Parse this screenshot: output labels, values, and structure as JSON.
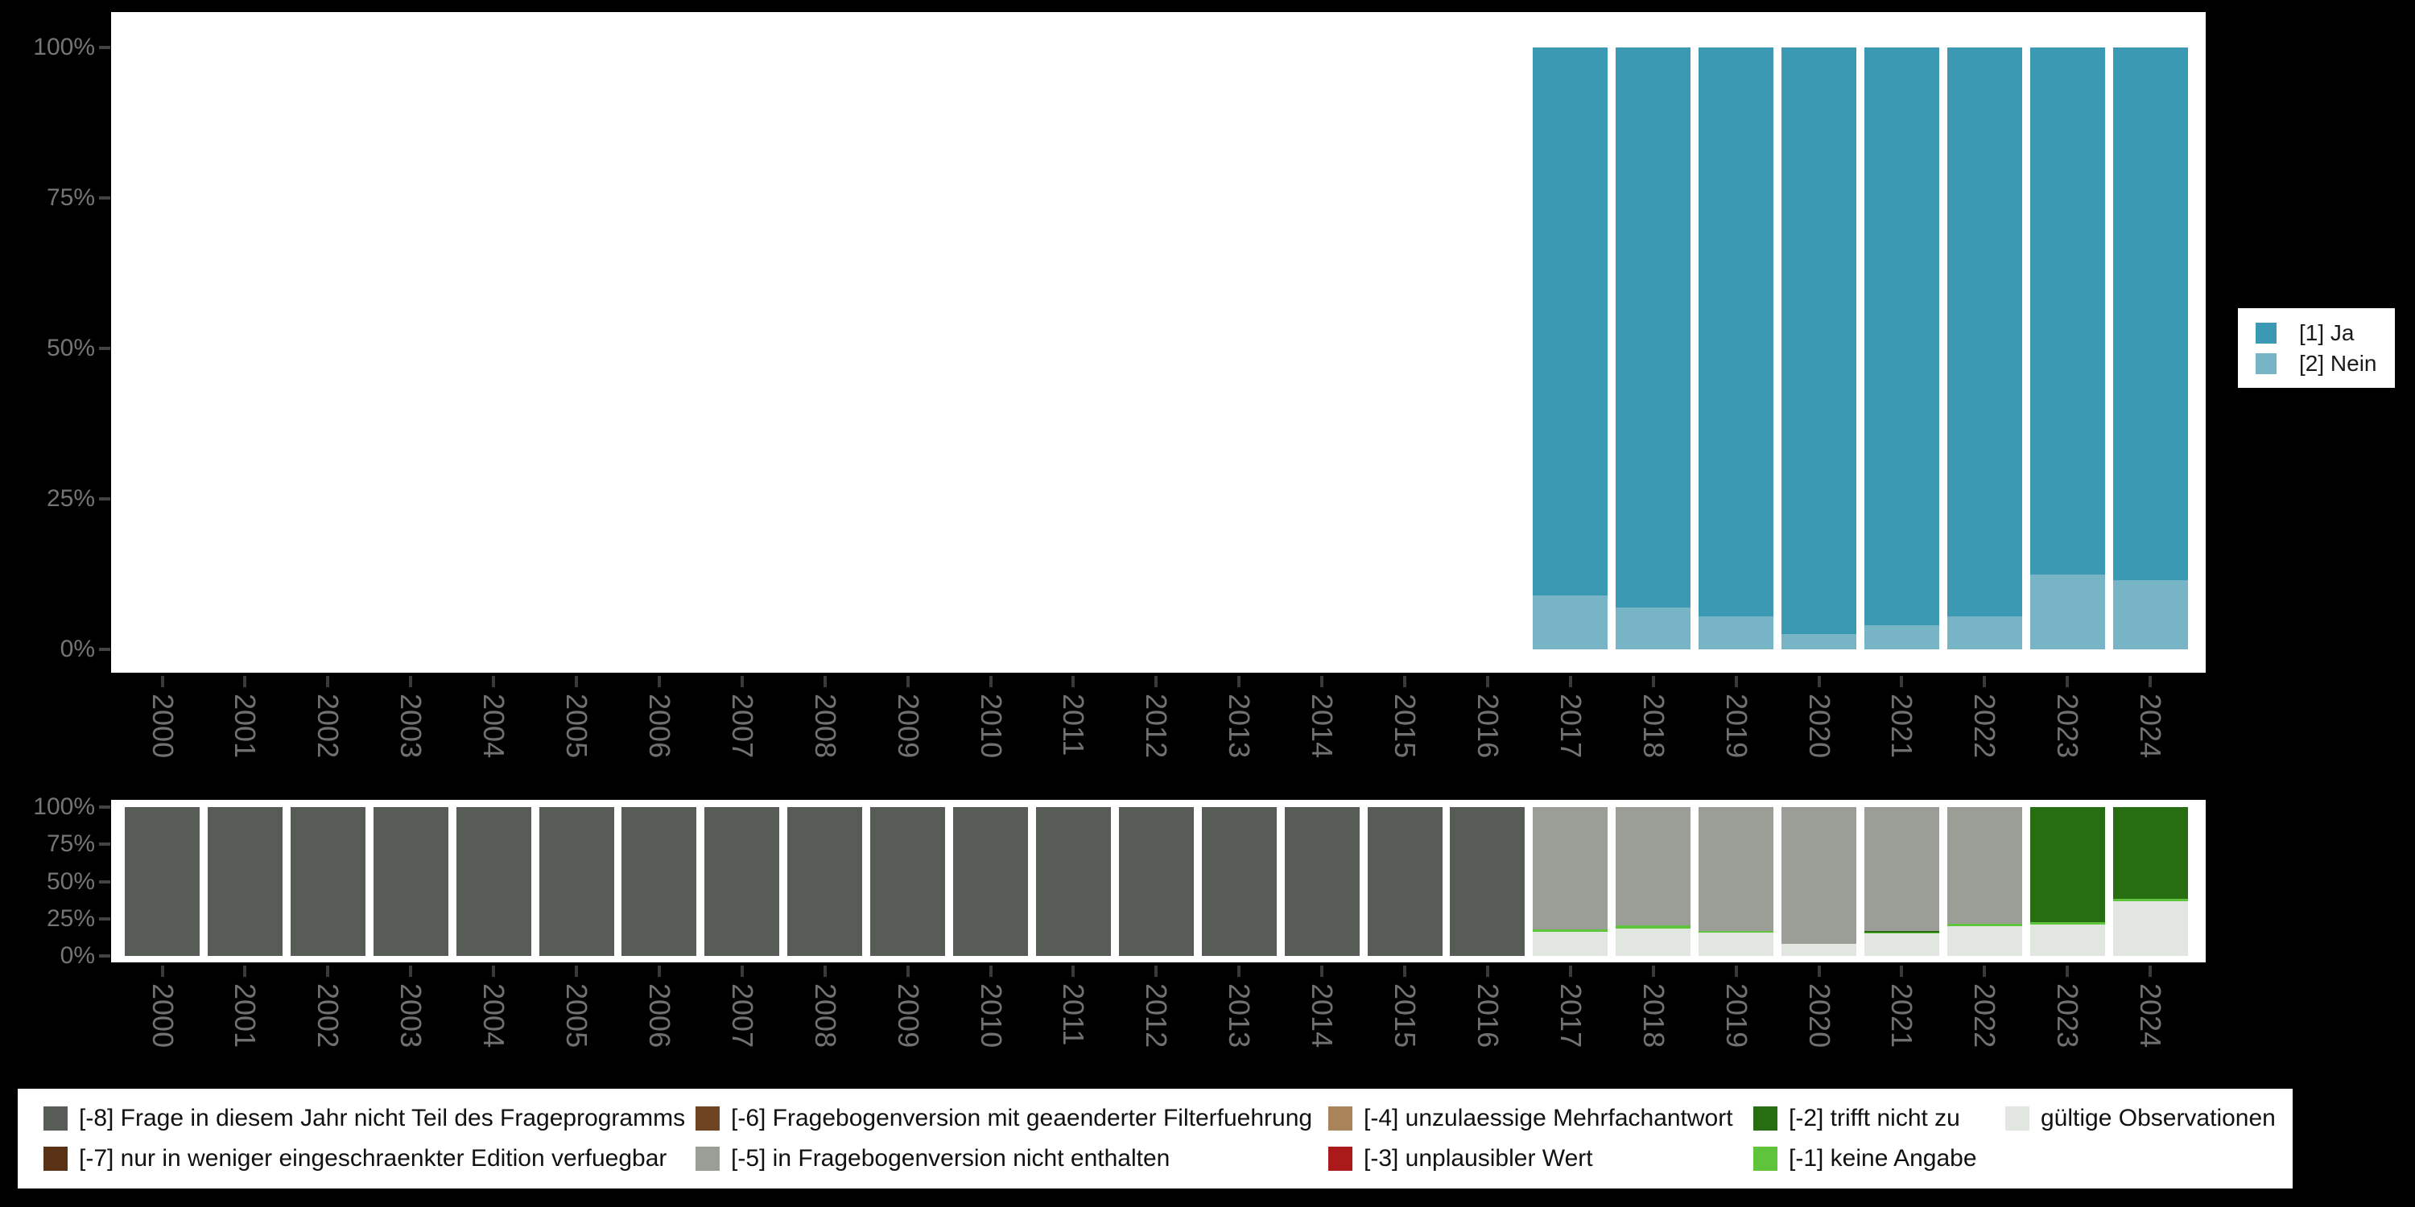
{
  "years": [
    "2000",
    "2001",
    "2002",
    "2003",
    "2004",
    "2005",
    "2006",
    "2007",
    "2008",
    "2009",
    "2010",
    "2011",
    "2012",
    "2013",
    "2014",
    "2015",
    "2016",
    "2017",
    "2018",
    "2019",
    "2020",
    "2021",
    "2022",
    "2023",
    "2024"
  ],
  "y_axis_tick_labels": [
    "100%",
    "75%",
    "50%",
    "25%",
    "0%"
  ],
  "values_legend": {
    "items": [
      {
        "label": "[1] Ja",
        "color": "#3b99b4"
      },
      {
        "label": "[2] Nein",
        "color": "#77b5c6"
      }
    ]
  },
  "missings_legend": {
    "items": [
      {
        "label": "[-8] Frage in diesem Jahr nicht Teil des Frageprogramms",
        "color": "#575d56"
      },
      {
        "label": "[-7] nur in weniger eingeschraenkter Edition verfuegbar",
        "color": "#5a3317"
      },
      {
        "label": "[-6] Fragebogenversion mit geaenderter Filterfuehrung",
        "color": "#6e4423"
      },
      {
        "label": "[-5] in Fragebogenversion nicht enthalten",
        "color": "#9a9e96"
      },
      {
        "label": "[-4] unzulaessige Mehrfachantwort",
        "color": "#a9845a"
      },
      {
        "label": "[-3] unplausibler Wert",
        "color": "#ab1a1a"
      },
      {
        "label": "[-2] trifft nicht zu",
        "color": "#266e11"
      },
      {
        "label": "[-1] keine Angabe",
        "color": "#5ec43b"
      },
      {
        "label": "gültige Observationen",
        "color": "#e2e6e0"
      }
    ]
  },
  "chart_data": [
    {
      "id": "status",
      "type": "bar",
      "stacked": true,
      "unit": "percent",
      "title": "",
      "xlabel": "",
      "ylabel": "",
      "ylim": [
        0,
        100
      ],
      "grid": false,
      "legend_position": "right",
      "categories": [
        "2000",
        "2001",
        "2002",
        "2003",
        "2004",
        "2005",
        "2006",
        "2007",
        "2008",
        "2009",
        "2010",
        "2011",
        "2012",
        "2013",
        "2014",
        "2015",
        "2016",
        "2017",
        "2018",
        "2019",
        "2020",
        "2021",
        "2022",
        "2023",
        "2024"
      ],
      "series": [
        {
          "name": "[1] Ja",
          "color": "#3b99b4",
          "values": [
            null,
            null,
            null,
            null,
            null,
            null,
            null,
            null,
            null,
            null,
            null,
            null,
            null,
            null,
            null,
            null,
            null,
            91,
            93,
            94.5,
            97.5,
            96,
            94.5,
            87.5,
            88.5
          ]
        },
        {
          "name": "[2] Nein",
          "color": "#77b5c6",
          "values": [
            null,
            null,
            null,
            null,
            null,
            null,
            null,
            null,
            null,
            null,
            null,
            null,
            null,
            null,
            null,
            null,
            null,
            9,
            7,
            5.5,
            2.5,
            4,
            5.5,
            12.5,
            11.5
          ]
        }
      ]
    },
    {
      "id": "missings",
      "type": "bar",
      "stacked": true,
      "unit": "percent",
      "title": "",
      "xlabel": "",
      "ylabel": "",
      "ylim": [
        0,
        100
      ],
      "grid": false,
      "legend_position": "bottom",
      "categories": [
        "2000",
        "2001",
        "2002",
        "2003",
        "2004",
        "2005",
        "2006",
        "2007",
        "2008",
        "2009",
        "2010",
        "2011",
        "2012",
        "2013",
        "2014",
        "2015",
        "2016",
        "2017",
        "2018",
        "2019",
        "2020",
        "2021",
        "2022",
        "2023",
        "2024"
      ],
      "series": [
        {
          "name": "[-8] Frage in diesem Jahr nicht Teil des Frageprogramms",
          "color": "#575d56",
          "values": [
            100,
            100,
            100,
            100,
            100,
            100,
            100,
            100,
            100,
            100,
            100,
            100,
            100,
            100,
            100,
            100,
            100,
            0,
            0,
            0,
            0,
            0,
            0,
            0,
            0
          ]
        },
        {
          "name": "[-7] nur in weniger eingeschraenkter Edition verfuegbar",
          "color": "#5a3317",
          "values": [
            0,
            0,
            0,
            0,
            0,
            0,
            0,
            0,
            0,
            0,
            0,
            0,
            0,
            0,
            0,
            0,
            0,
            0,
            0,
            0,
            0,
            0,
            0,
            0,
            0
          ]
        },
        {
          "name": "[-6] Fragebogenversion mit geaenderter Filterfuehrung",
          "color": "#6e4423",
          "values": [
            0,
            0,
            0,
            0,
            0,
            0,
            0,
            0,
            0,
            0,
            0,
            0,
            0,
            0,
            0,
            0,
            0,
            0,
            0,
            0,
            0,
            0,
            0,
            0,
            0
          ]
        },
        {
          "name": "[-5] in Fragebogenversion nicht enthalten",
          "color": "#9a9e96",
          "values": [
            0,
            0,
            0,
            0,
            0,
            0,
            0,
            0,
            0,
            0,
            0,
            0,
            0,
            0,
            0,
            0,
            0,
            82,
            79.5,
            83,
            92,
            83.5,
            78.5,
            0,
            0
          ]
        },
        {
          "name": "[-4] unzulaessige Mehrfachantwort",
          "color": "#a9845a",
          "values": [
            0,
            0,
            0,
            0,
            0,
            0,
            0,
            0,
            0,
            0,
            0,
            0,
            0,
            0,
            0,
            0,
            0,
            0,
            0,
            0,
            0,
            0,
            0,
            0,
            0
          ]
        },
        {
          "name": "[-3] unplausibler Wert",
          "color": "#ab1a1a",
          "values": [
            0,
            0,
            0,
            0,
            0,
            0,
            0,
            0,
            0,
            0,
            0,
            0,
            0,
            0,
            0,
            0,
            0,
            0,
            0,
            0,
            0,
            0,
            0,
            0,
            0
          ]
        },
        {
          "name": "[-2] trifft nicht zu",
          "color": "#266e11",
          "values": [
            0,
            0,
            0,
            0,
            0,
            0,
            0,
            0,
            0,
            0,
            0,
            0,
            0,
            0,
            0,
            0,
            0,
            0,
            0,
            0,
            0,
            0.7,
            0,
            77.5,
            61.5
          ]
        },
        {
          "name": "[-1] keine Angabe",
          "color": "#5ec43b",
          "values": [
            0,
            0,
            0,
            0,
            0,
            0,
            0,
            0,
            0,
            0,
            0,
            0,
            0,
            0,
            0,
            0,
            0,
            2,
            2,
            1.5,
            0,
            0.8,
            1.5,
            1.5,
            1.5
          ]
        },
        {
          "name": "gültige Observationen",
          "color": "#e2e6e0",
          "values": [
            0,
            0,
            0,
            0,
            0,
            0,
            0,
            0,
            0,
            0,
            0,
            0,
            0,
            0,
            0,
            0,
            0,
            16,
            18.5,
            15.5,
            8,
            15,
            20,
            21,
            37
          ]
        }
      ]
    }
  ]
}
